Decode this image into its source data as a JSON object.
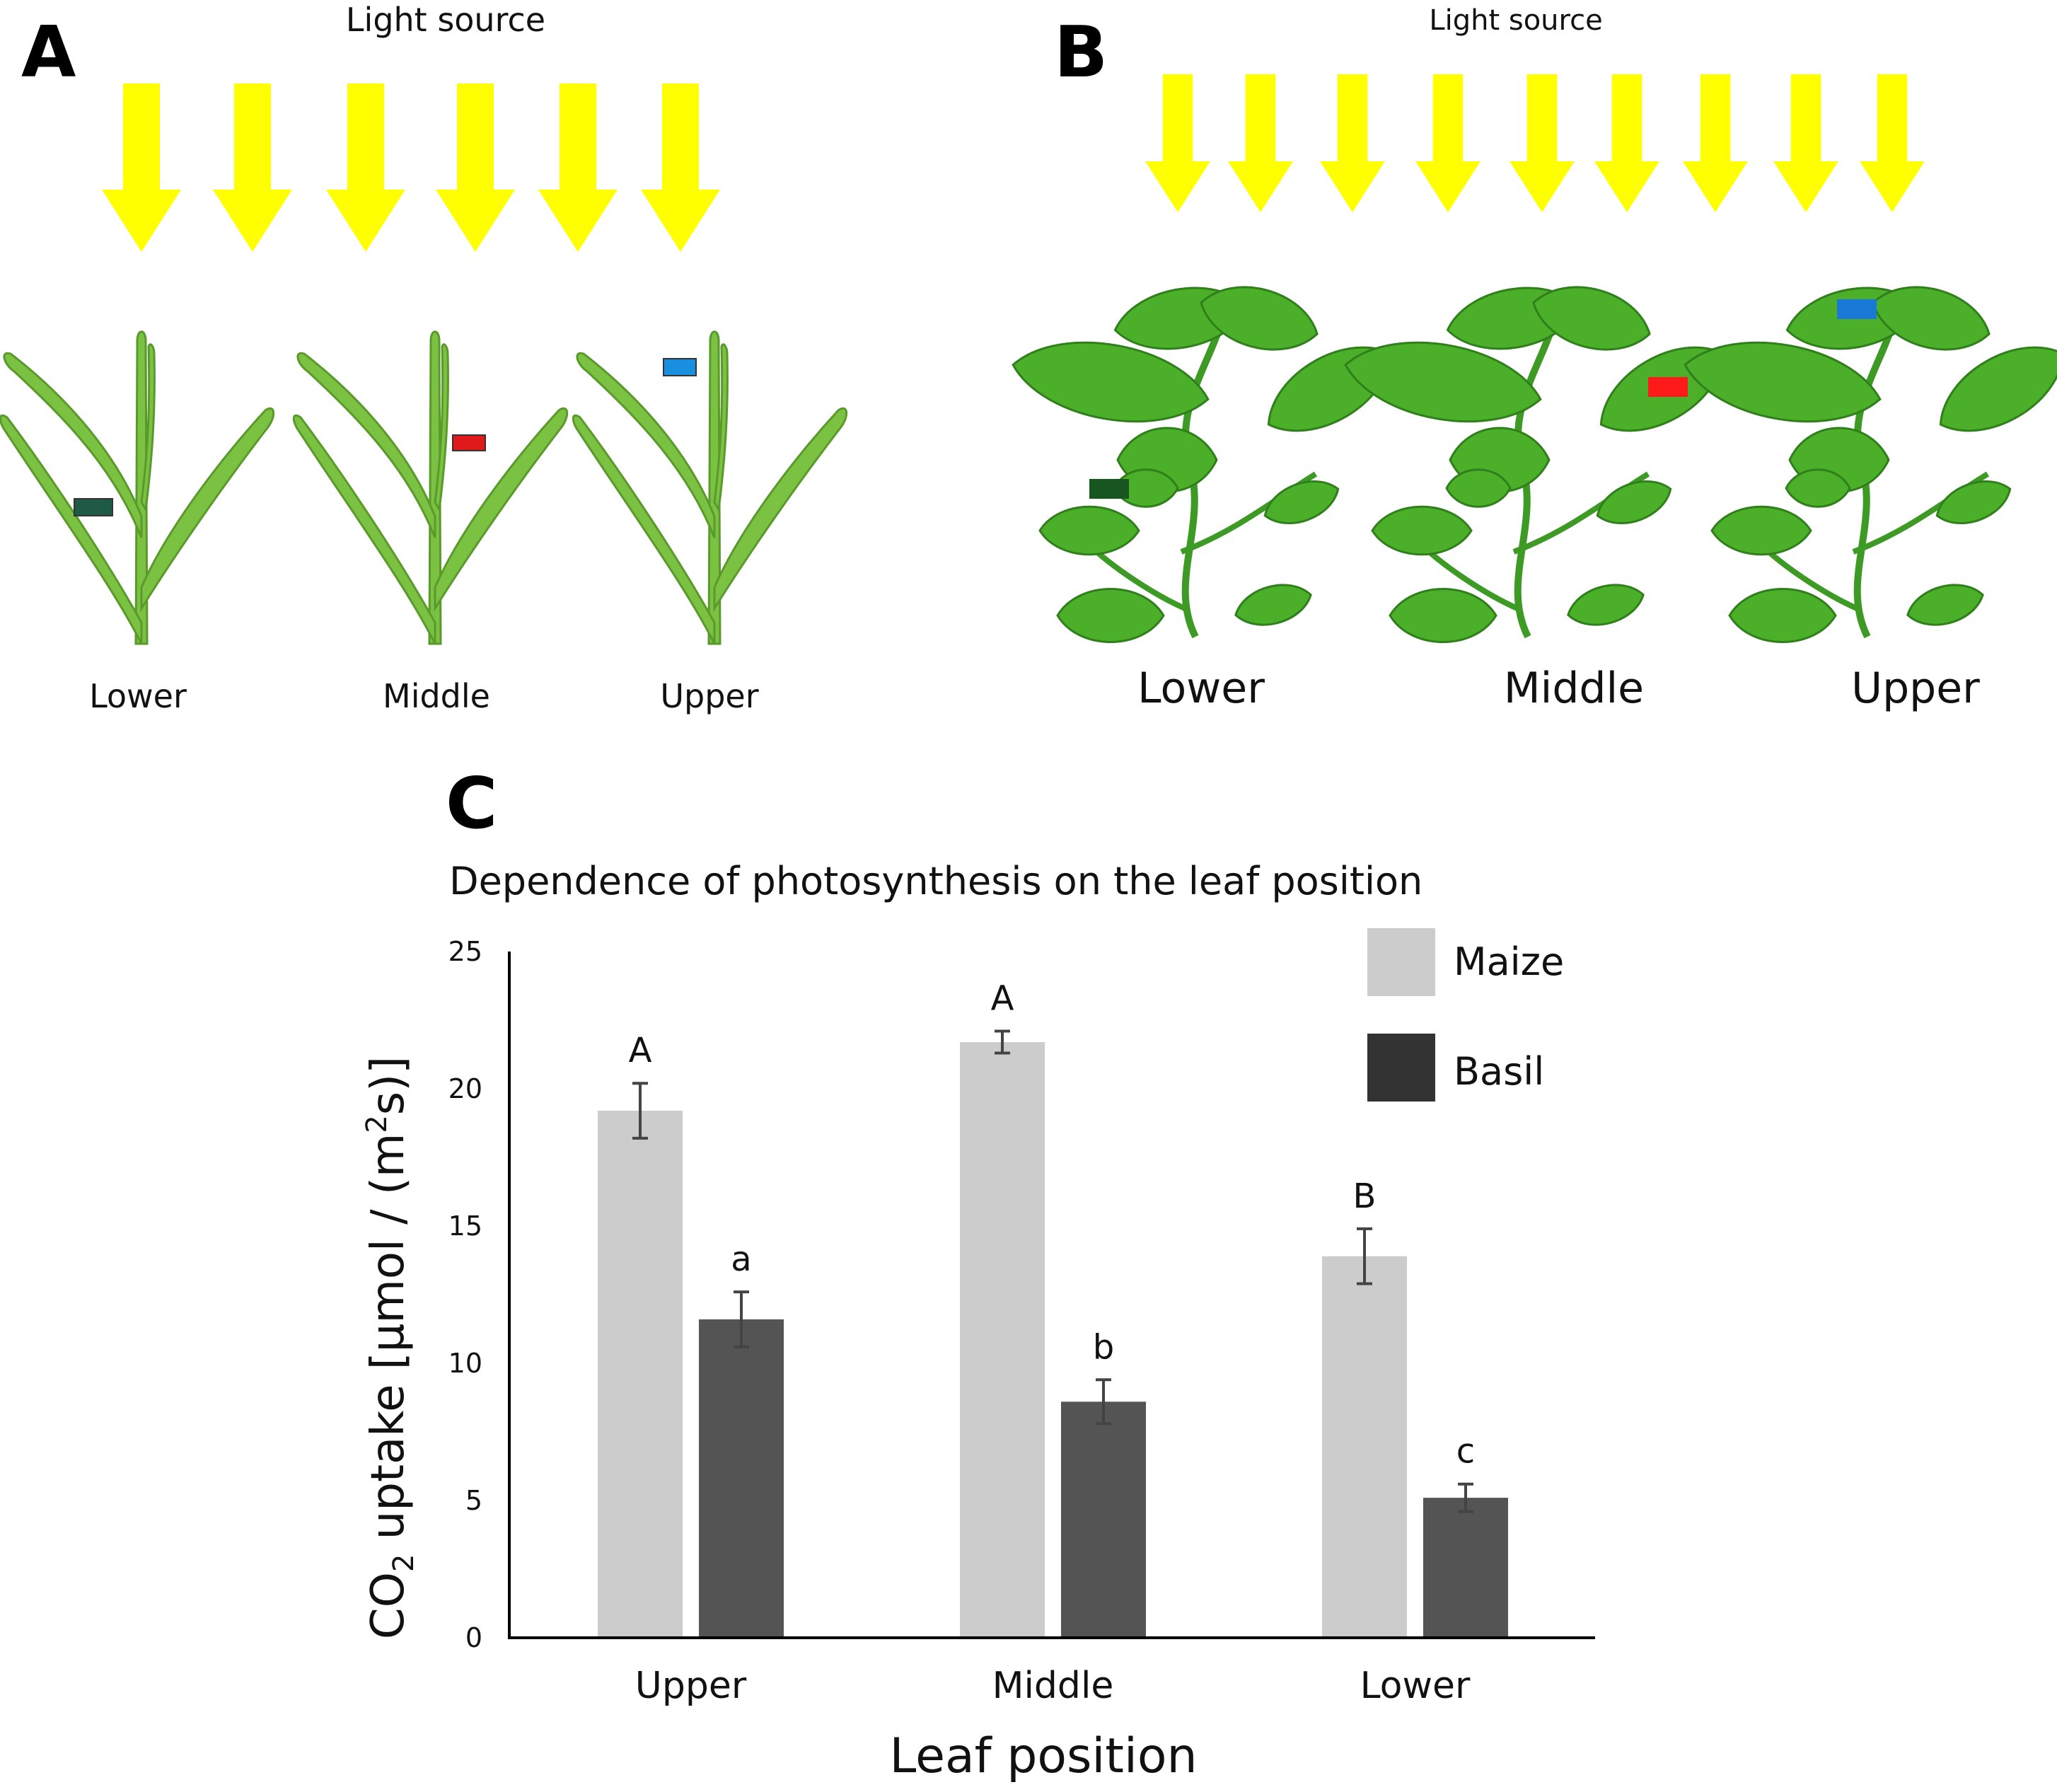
{
  "panels": {
    "A": {
      "letter": "A",
      "light_label": "Light source",
      "positions": [
        "Lower",
        "Middle",
        "Upper"
      ],
      "marker_colors": [
        "#1e5a46",
        "#e01a1a",
        "#1a8fe0"
      ]
    },
    "B": {
      "letter": "B",
      "light_label": "Light source",
      "positions": [
        "Lower",
        "Middle",
        "Upper"
      ],
      "marker_colors": [
        "#17561f",
        "#ff1a1a",
        "#1a78d6"
      ]
    },
    "C": {
      "letter": "C"
    }
  },
  "colors": {
    "light_arrow": "#ffff00",
    "maize_leaf": "#7cc242",
    "basil_leaf": "#4caf2a",
    "maize_bar": "#cccccc",
    "basil_bar": "#545454",
    "legend_maize": "#cccccc",
    "legend_basil": "#333333"
  },
  "chart_data": {
    "type": "bar",
    "title": "Dependence of photosynthesis on the leaf position",
    "xlabel": "Leaf position",
    "ylabel_parts": {
      "pre": "CO",
      "sub": "2",
      "mid": " uptake [μmol / (m",
      "sup": "2",
      "post": "s)]"
    },
    "categories": [
      "Upper",
      "Middle",
      "Lower"
    ],
    "ylim": [
      0,
      25
    ],
    "yticks": [
      "0",
      "5",
      "10",
      "15",
      "20",
      "25"
    ],
    "grid": false,
    "legend_position": "top-right",
    "series": [
      {
        "name": "Maize",
        "values": [
          19.2,
          21.7,
          13.9
        ],
        "errors": [
          1.0,
          0.4,
          1.0
        ],
        "letters": [
          "A",
          "A",
          "B"
        ]
      },
      {
        "name": "Basil",
        "values": [
          11.6,
          8.6,
          5.1
        ],
        "errors": [
          1.0,
          0.8,
          0.5
        ],
        "letters": [
          "a",
          "b",
          "c"
        ]
      }
    ]
  }
}
